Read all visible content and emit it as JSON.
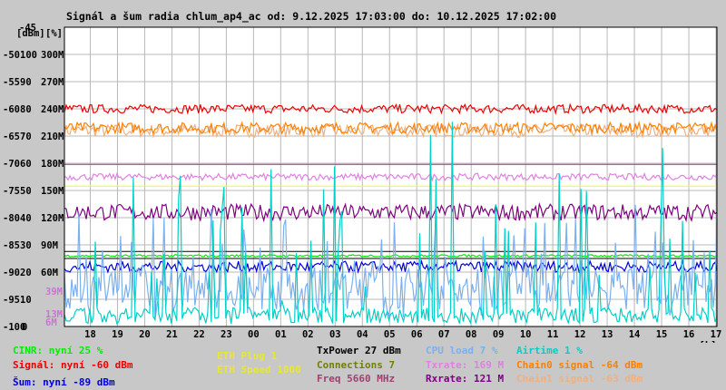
{
  "title": "Signál a šum radia chlum_ap4_ac od: 9.12.2025 17:03:00 do: 10.12.2025 17:02:00",
  "chart_data": {
    "type": "line",
    "y_axes": [
      {
        "unit": "[dBm]",
        "ticks": [
          "-45",
          "-50",
          "-55",
          "-60",
          "-65",
          "-70",
          "-75",
          "-80",
          "-85",
          "-90",
          "-95",
          "-100"
        ],
        "range": [
          -100,
          -45
        ]
      },
      {
        "unit": "[%]",
        "ticks": [
          "100",
          "90",
          "80",
          "70",
          "60",
          "50",
          "40",
          "30",
          "20",
          "10",
          "0"
        ],
        "range": [
          0,
          110
        ]
      },
      {
        "unit": "",
        "ticks": [
          "300M",
          "270M",
          "240M",
          "210M",
          "180M",
          "150M",
          "120M",
          "90M",
          "60M"
        ],
        "range": [
          0,
          330
        ]
      }
    ],
    "extra_ticks": [
      {
        "label": "39M",
        "color": "#d070d8"
      },
      {
        "label": "13M",
        "color": "#d070d8"
      },
      {
        "label": "6M",
        "color": "#d070d8"
      }
    ],
    "x_ticks": [
      "18",
      "19",
      "20",
      "21",
      "22",
      "23",
      "00",
      "01",
      "02",
      "03",
      "04",
      "05",
      "06",
      "07",
      "08",
      "09",
      "10",
      "11",
      "12",
      "13",
      "14",
      "15",
      "16",
      "17"
    ],
    "x_unit": "[h]",
    "x_start_hour": 17.05,
    "x_end_hour": 41.0333,
    "grid": true,
    "series": [
      {
        "key": "chain1",
        "color": "#f0b080",
        "level_dbm": -64,
        "noise": 1.2
      },
      {
        "key": "signal",
        "color": "#ee0000",
        "level_dbm": -60,
        "noise": 0.8
      },
      {
        "key": "chain0",
        "color": "#ff8000",
        "level_dbm": -63.5,
        "noise": 1.0
      },
      {
        "key": "txrate",
        "color": "#e080e0",
        "level_dbm": -72.5,
        "noise": 0.6
      },
      {
        "key": "rxrate",
        "color": "#800080",
        "level_dbm": -79,
        "noise": 1.5
      },
      {
        "key": "cinr",
        "color": "#00ee00",
        "level_dbm": -87,
        "noise": 0.2
      },
      {
        "key": "noise",
        "color": "#0000dd",
        "level_dbm": -89,
        "noise": 1.0
      },
      {
        "key": "cpu",
        "color": "#7ab0f0",
        "level_dbm": -93,
        "noise": 6.0
      },
      {
        "key": "airtime",
        "color": "#00d0c8",
        "level_dbm": -98,
        "noise": 3.0
      }
    ],
    "reference_lines": [
      {
        "value_dbm": -70.2,
        "color": "#a0307a"
      },
      {
        "value_dbm": -74.2,
        "color": "#ffff00"
      },
      {
        "value_dbm": -86.2,
        "color": "#000000"
      },
      {
        "value_dbm": -87.5,
        "color": "#000000"
      }
    ]
  },
  "legend": {
    "cinr": {
      "text": "CINR: nyní 25 %",
      "color": "#00ee00"
    },
    "signal": {
      "text": "Signál: nyní -60 dBm",
      "color": "#ee0000"
    },
    "noise": {
      "text": "Šum: nyní -89 dBm",
      "color": "#0000dd"
    },
    "eth_plug": {
      "text": "ETH Plug 1",
      "color": "#e8e830"
    },
    "eth_speed": {
      "text": "ETH Speed 1000",
      "color": "#e8e830"
    },
    "txpower": {
      "text": "TxPower 27 dBm",
      "color": "#000000"
    },
    "connections": {
      "text": "Connections 7",
      "color": "#708000"
    },
    "freq": {
      "text": "Freq 5660 MHz",
      "color": "#a04070"
    },
    "cpu": {
      "text": "CPU load 7 %",
      "color": "#7ab0f0"
    },
    "txrate": {
      "text": "Txrate: 169 M",
      "color": "#e080e0"
    },
    "rxrate": {
      "text": "Rxrate: 121 M",
      "color": "#800080"
    },
    "airtime": {
      "text": "Airtime 1 %",
      "color": "#00d0c8"
    },
    "chain0": {
      "text": "Chain0 signal -64 dBm",
      "color": "#ff8000"
    },
    "chain1": {
      "text": "Chain1 signal -63 dBm",
      "color": "#f0b080"
    }
  }
}
